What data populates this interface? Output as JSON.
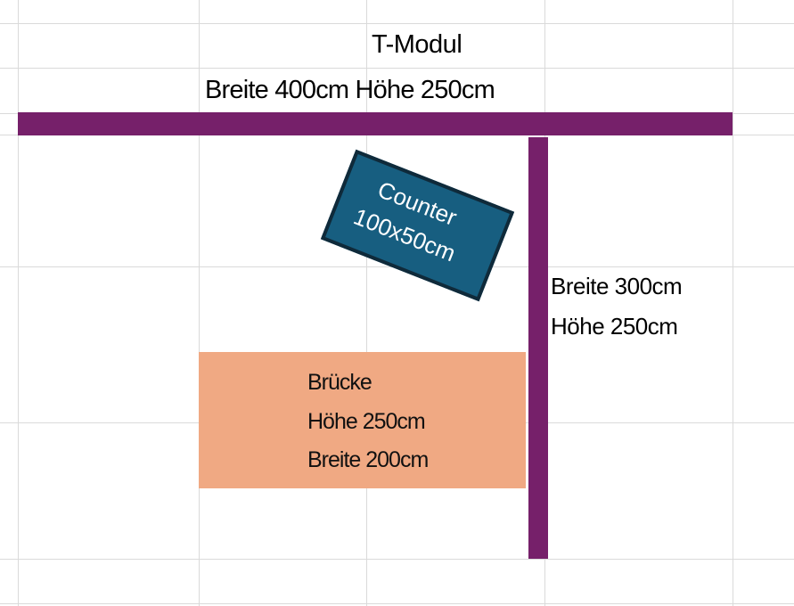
{
  "title": "T-Modul",
  "top_wall": {
    "label": "Breite 400cm Höhe 250cm",
    "color": "#76206a"
  },
  "side_wall": {
    "line1": "Breite 300cm",
    "line2": "Höhe 250cm",
    "color": "#76206a"
  },
  "counter": {
    "line1": "Counter",
    "line2": "100x50cm",
    "fill": "#175e80",
    "border": "#0f2a3a"
  },
  "bruecke": {
    "line1": "Brücke",
    "line2": "Höhe 250cm",
    "line3": "Breite 200cm",
    "fill": "#f0a983"
  }
}
